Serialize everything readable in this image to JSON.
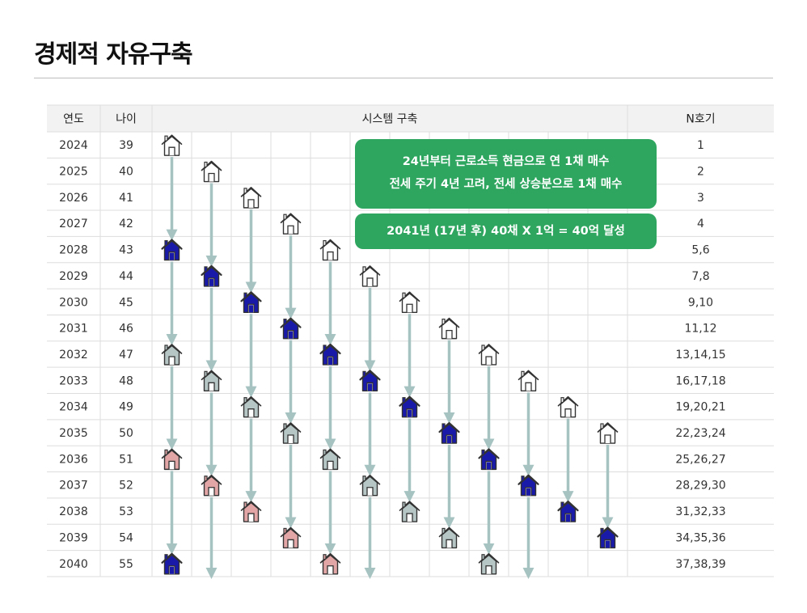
{
  "title": "경제적 자유구축",
  "colors": {
    "new_house": "#ffffff",
    "tenant_change": "#1a1aa8",
    "renewed_house": "#b6c6c5",
    "old_house": "#e3a6a6",
    "arrow": "#a6c3c2",
    "callout": "#2fa660",
    "header_bg": "#f2f2f2",
    "grid": "#dddddd"
  },
  "callouts": [
    {
      "lines": [
        "24년부터 근로소득 현금으로  연 1채 매수",
        "전세 주기 4년 고려, 전세 상승분으로 1채 매수"
      ]
    },
    {
      "lines": [
        "2041년 (17년 후) 40채 X 1억 = 40억 달성"
      ]
    }
  ],
  "chart_data": {
    "type": "table",
    "columns": [
      "연도",
      "나이",
      "시스템 구축",
      "N호기"
    ],
    "rows": [
      {
        "year": "2024",
        "age": "39",
        "units": "1"
      },
      {
        "year": "2025",
        "age": "40",
        "units": "2"
      },
      {
        "year": "2026",
        "age": "41",
        "units": "3"
      },
      {
        "year": "2027",
        "age": "42",
        "units": "4"
      },
      {
        "year": "2028",
        "age": "43",
        "units": "5,6"
      },
      {
        "year": "2029",
        "age": "44",
        "units": "7,8"
      },
      {
        "year": "2030",
        "age": "45",
        "units": "9,10"
      },
      {
        "year": "2031",
        "age": "46",
        "units": "11,12"
      },
      {
        "year": "2032",
        "age": "47",
        "units": "13,14,15"
      },
      {
        "year": "2033",
        "age": "48",
        "units": "16,17,18"
      },
      {
        "year": "2034",
        "age": "49",
        "units": "19,20,21"
      },
      {
        "year": "2035",
        "age": "50",
        "units": "22,23,24"
      },
      {
        "year": "2036",
        "age": "51",
        "units": "25,26,27"
      },
      {
        "year": "2037",
        "age": "52",
        "units": "28,29,30"
      },
      {
        "year": "2038",
        "age": "53",
        "units": "31,32,33"
      },
      {
        "year": "2039",
        "age": "54",
        "units": "34,35,36"
      },
      {
        "year": "2040",
        "age": "55",
        "units": "37,38,39"
      }
    ],
    "house_tracks": [
      {
        "start_year": 2024,
        "stages": [
          "new",
          "tenant_change",
          "renewed",
          "old",
          "tenant_change"
        ]
      },
      {
        "start_year": 2025,
        "stages": [
          "new",
          "tenant_change",
          "renewed",
          "old",
          "arrow"
        ]
      },
      {
        "start_year": 2026,
        "stages": [
          "new",
          "tenant_change",
          "renewed",
          "old"
        ]
      },
      {
        "start_year": 2027,
        "stages": [
          "new",
          "tenant_change",
          "renewed",
          "old"
        ]
      },
      {
        "start_year": 2028,
        "stages": [
          "new",
          "tenant_change",
          "renewed",
          "old"
        ]
      },
      {
        "start_year": 2029,
        "stages": [
          "new",
          "tenant_change",
          "renewed",
          "arrow"
        ]
      },
      {
        "start_year": 2030,
        "stages": [
          "new",
          "tenant_change",
          "renewed"
        ]
      },
      {
        "start_year": 2031,
        "stages": [
          "new",
          "tenant_change",
          "renewed"
        ]
      },
      {
        "start_year": 2032,
        "stages": [
          "new",
          "tenant_change",
          "renewed"
        ]
      },
      {
        "start_year": 2033,
        "stages": [
          "new",
          "tenant_change",
          "arrow"
        ]
      },
      {
        "start_year": 2034,
        "stages": [
          "new",
          "tenant_change"
        ]
      },
      {
        "start_year": 2035,
        "stages": [
          "new",
          "tenant_change"
        ]
      }
    ]
  }
}
